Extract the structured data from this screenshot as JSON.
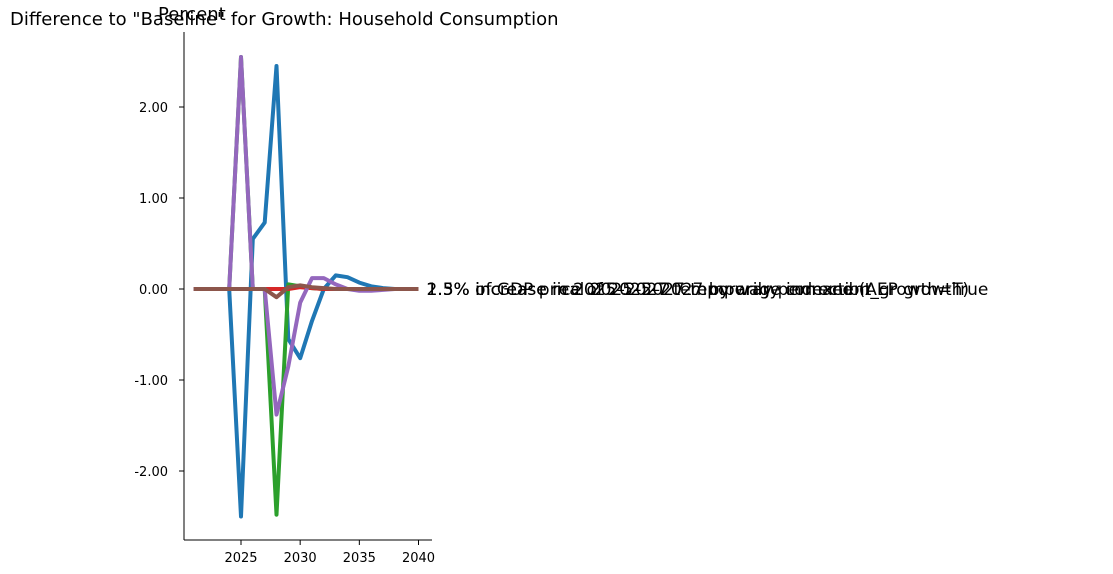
{
  "chart_data": {
    "type": "line",
    "title": "Difference to \"Baseline\" for Growth: Household Consumption",
    "ylabel": "Percent",
    "xlabel": "",
    "xlim": [
      2020,
      2040.5
    ],
    "ylim": [
      -2.8,
      2.8
    ],
    "x_ticks": [
      2025,
      2030,
      2035,
      2040
    ],
    "y_ticks": [
      -2,
      -1,
      0,
      1,
      2
    ],
    "y_tick_labels": [
      "-2.00",
      "-1.00",
      "0.00",
      "1.00",
      "2.00"
    ],
    "grid": false,
    "series": [
      {
        "name": "1.3% increase in 2025–2027 temporarily permanent",
        "color": "#1f77b4",
        "x": [
          2021,
          2022,
          2023,
          2024,
          2025,
          2026,
          2027,
          2028,
          2029,
          2030,
          2031,
          2032,
          2033,
          2034,
          2035,
          2036,
          2037,
          2038,
          2039,
          2040
        ],
        "y": [
          0,
          0,
          0,
          0,
          -2.5,
          0.55,
          0.73,
          2.45,
          -0.55,
          -0.76,
          -0.35,
          0,
          0.15,
          0.13,
          0.07,
          0.03,
          0.01,
          0,
          0,
          0
        ]
      },
      {
        "name": "2.5% of GDP price of 2025–2027 by wage indexed (AEP growth)",
        "color": "#2ca02c",
        "x": [
          2021,
          2022,
          2023,
          2024,
          2025,
          2026,
          2027,
          2028,
          2029,
          2030,
          2031,
          2032,
          2033,
          2034,
          2035,
          2036,
          2037,
          2038,
          2039,
          2040
        ],
        "y": [
          0,
          0,
          0,
          0,
          2.55,
          0,
          0,
          -2.48,
          0.05,
          0.03,
          0.01,
          0,
          0,
          0,
          0,
          0,
          0,
          0,
          0,
          0
        ]
      },
      {
        "name": "1.5% increase real 2025–2027 temporary correction_growth=True",
        "color": "#d62728",
        "x": [
          2021,
          2022,
          2023,
          2024,
          2025,
          2026,
          2027,
          2028,
          2029,
          2030,
          2031,
          2032,
          2033,
          2034,
          2035,
          2036,
          2037,
          2038,
          2039,
          2040
        ],
        "y": [
          0,
          0,
          0,
          0,
          0,
          0,
          0,
          0,
          0,
          0.02,
          0.01,
          0,
          0,
          0,
          0,
          0,
          0,
          0,
          0,
          0
        ]
      },
      {
        "name": "",
        "color": "#9467bd",
        "x": [
          2021,
          2022,
          2023,
          2024,
          2025,
          2026,
          2027,
          2028,
          2029,
          2030,
          2031,
          2032,
          2033,
          2034,
          2035,
          2036,
          2037,
          2038,
          2039,
          2040
        ],
        "y": [
          0,
          0,
          0,
          0,
          2.55,
          0,
          0,
          -1.38,
          -0.85,
          -0.15,
          0.12,
          0.12,
          0.05,
          0,
          -0.02,
          -0.02,
          -0.01,
          0,
          0,
          0
        ]
      },
      {
        "name": "",
        "color": "#8c564b",
        "x": [
          2021,
          2022,
          2023,
          2024,
          2025,
          2026,
          2027,
          2028,
          2029,
          2030,
          2031,
          2032,
          2033,
          2034,
          2035,
          2036,
          2037,
          2038,
          2039,
          2040
        ],
        "y": [
          0,
          0,
          0,
          0,
          0,
          0,
          0,
          -0.09,
          0.02,
          0.04,
          0.02,
          0.01,
          0,
          0,
          0,
          0,
          0,
          0,
          0,
          0
        ]
      }
    ]
  }
}
